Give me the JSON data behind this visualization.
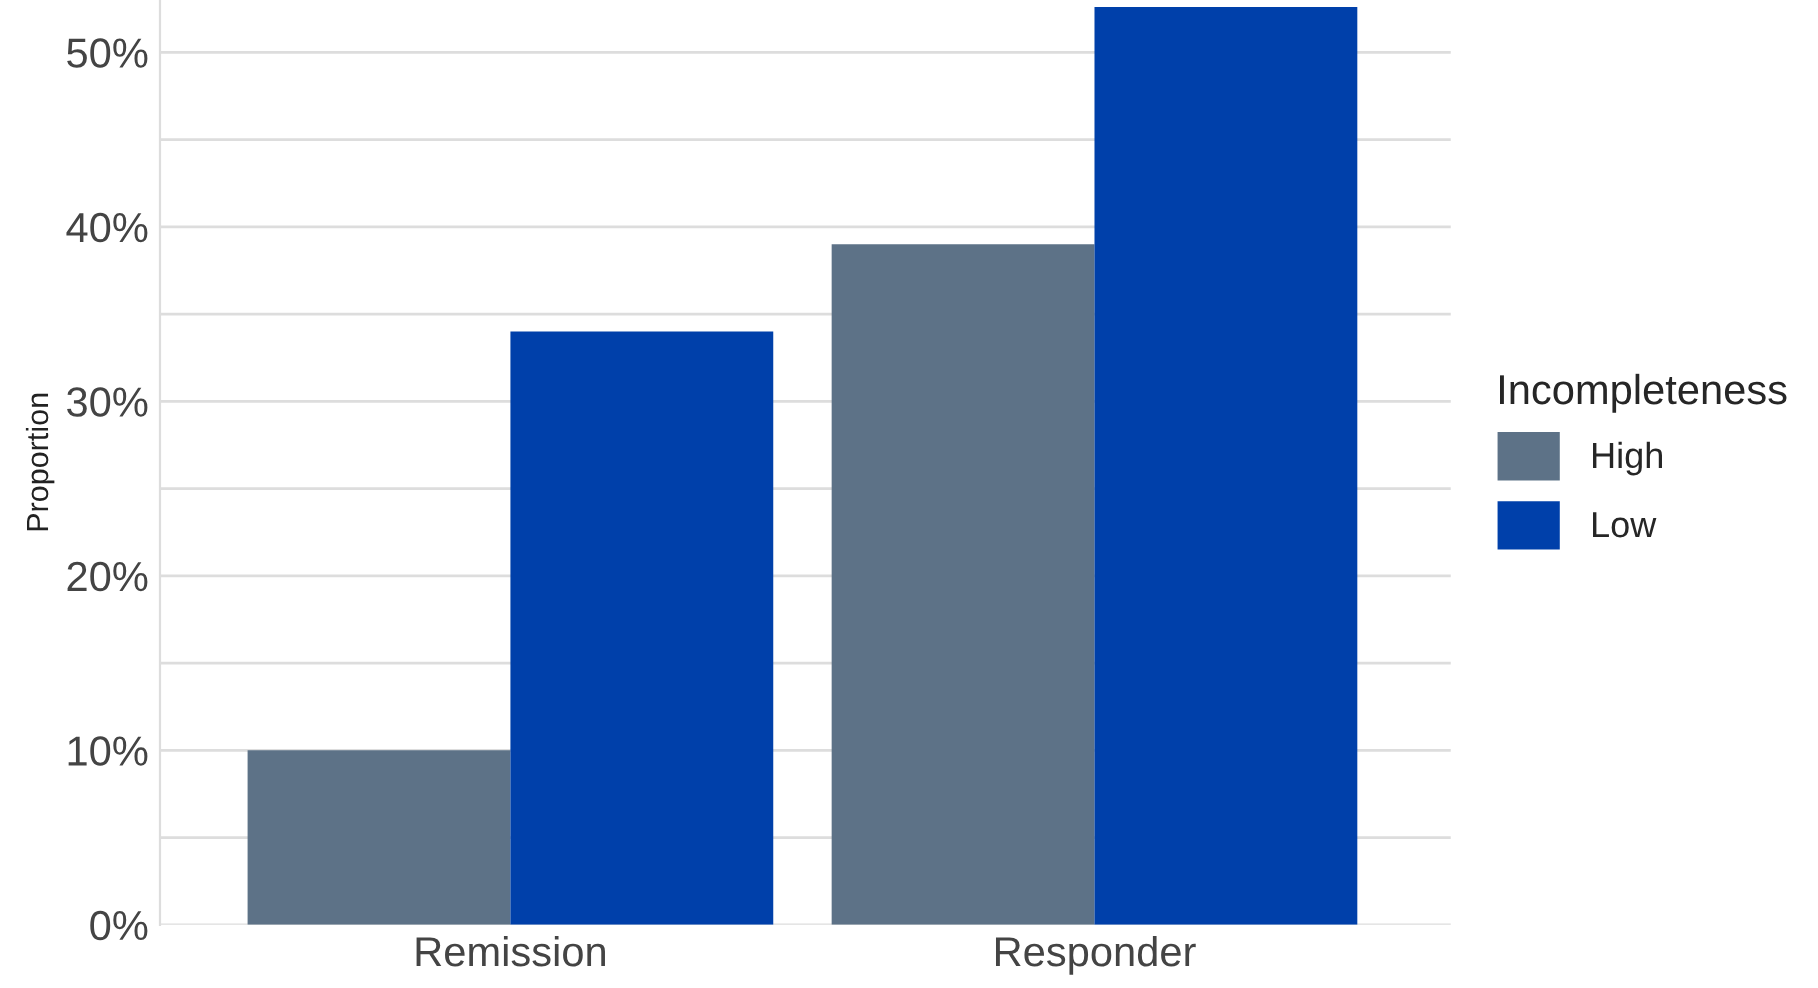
{
  "chart_data": {
    "type": "bar",
    "ylabel": "Proportion",
    "legend_title": "Incompleteness",
    "categories": [
      "Remission",
      "Responder"
    ],
    "series": [
      {
        "name": "High",
        "color": "#5d7287",
        "values": [
          10,
          39
        ]
      },
      {
        "name": "Low",
        "color": "#0040aa",
        "values": [
          34,
          52.6
        ]
      }
    ],
    "ylim": [
      0,
      53
    ],
    "yticks": [
      {
        "value": 0,
        "label": "0%"
      },
      {
        "value": 5,
        "label": null
      },
      {
        "value": 10,
        "label": "10%"
      },
      {
        "value": 15,
        "label": null
      },
      {
        "value": 20,
        "label": "20%"
      },
      {
        "value": 25,
        "label": null
      },
      {
        "value": 30,
        "label": "30%"
      },
      {
        "value": 35,
        "label": null
      },
      {
        "value": 40,
        "label": "40%"
      },
      {
        "value": 45,
        "label": null
      },
      {
        "value": 50,
        "label": "50%"
      }
    ],
    "grid": "y",
    "legend": "right"
  }
}
